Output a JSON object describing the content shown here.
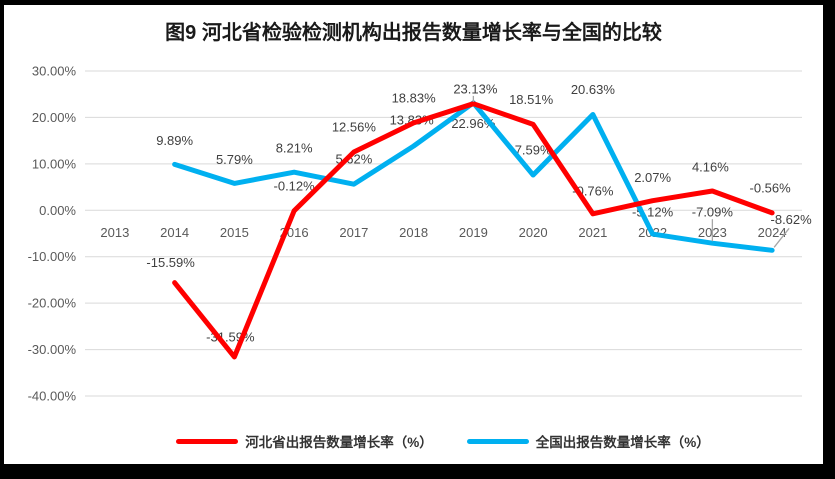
{
  "frame": {
    "border_color": "#000000",
    "canvas_color": "#FFFFFF"
  },
  "title": {
    "text": "图9 河北省检验检测机构出报告数量增长率与全国的比较"
  },
  "legend": {
    "items": [
      {
        "label": "河北省出报告数量增长率（%）",
        "color": "#FF0000"
      },
      {
        "label": "全国出报告数量增长率（%）",
        "color": "#00B0F0"
      }
    ]
  },
  "chart_data": {
    "type": "line",
    "title": "图9 河北省检验检测机构出报告数量增长率与全国的比较",
    "categories": [
      "2013",
      "2014",
      "2015",
      "2016",
      "2017",
      "2018",
      "2019",
      "2020",
      "2021",
      "2022",
      "2023",
      "2024"
    ],
    "ylim": [
      -40,
      30
    ],
    "yticks": [
      30,
      20,
      10,
      0,
      -10,
      -20,
      -30,
      -40
    ],
    "ytick_labels": [
      "30.00%",
      "20.00%",
      "10.00%",
      "0.00%",
      "-10.00%",
      "-20.00%",
      "-30.00%",
      "-40.00%"
    ],
    "grid": true,
    "gridline_color": "#D9D9D9",
    "leader_color": "#A6A6A6",
    "legend_position": "bottom",
    "series": [
      {
        "name": "全国出报告数量增长率（%）",
        "color": "#00B0F0",
        "values": [
          null,
          9.89,
          5.79,
          8.21,
          5.62,
          13.83,
          23.13,
          7.59,
          20.63,
          -5.12,
          -7.09,
          -8.62
        ],
        "labels": [
          "",
          "9.89%",
          "5.79%",
          "8.21%",
          "5.62%",
          "13.83%",
          "23.13%",
          "7.59%",
          "20.63%",
          "-5.12%",
          "-7.09%",
          "-8.62%"
        ],
        "label_dx": [
          0,
          0,
          0,
          0,
          0,
          -2,
          2,
          0,
          0,
          0,
          0,
          19
        ],
        "label_dy": [
          0,
          -24,
          -24,
          -24,
          -25,
          -26,
          -14,
          -25,
          -25,
          -22,
          -31,
          -31
        ]
      },
      {
        "name": "河北省出报告数量增长率（%）",
        "color": "#FF0000",
        "values": [
          null,
          -15.59,
          -31.59,
          -0.12,
          12.56,
          18.83,
          22.96,
          18.51,
          -0.76,
          2.07,
          4.16,
          -0.56
        ],
        "labels": [
          "",
          "-15.59%",
          "-31.59%",
          "-0.12%",
          "12.56%",
          "18.83%",
          "22.96%",
          "18.51%",
          "-0.76%",
          "2.07%",
          "4.16%",
          "-0.56%"
        ],
        "label_dx": [
          0,
          -4,
          -4,
          0,
          0,
          0,
          0,
          -2,
          0,
          0,
          -2,
          -2
        ],
        "label_dy": [
          0,
          -20,
          -20,
          -25,
          -25,
          -25,
          20,
          -25,
          -23,
          -23,
          -24,
          -25
        ]
      }
    ],
    "label_leaders": [
      {
        "si": 0,
        "i": 6,
        "dx1": 0,
        "dy1": -7,
        "dx2": 0,
        "dy2": -1
      },
      {
        "si": 0,
        "i": 10,
        "dx1": 0,
        "dy1": -24,
        "dx2": 0,
        "dy2": -2
      },
      {
        "si": 0,
        "i": 11,
        "dx1": 2,
        "dy1": -3,
        "dx2": 17,
        "dy2": -22
      }
    ]
  }
}
